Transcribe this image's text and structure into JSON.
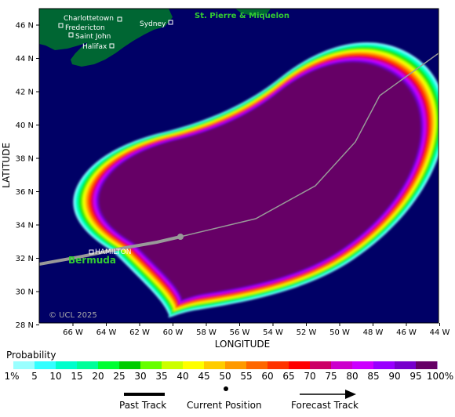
{
  "map": {
    "axis_title_x": "LONGITUDE",
    "axis_title_y": "LATITUDE",
    "lon_ticks": [
      "66 W",
      "64 W",
      "62 W",
      "60 W",
      "58 W",
      "56 W",
      "54 W",
      "52 W",
      "50 W",
      "48 W",
      "46 W",
      "44 W"
    ],
    "lat_ticks": [
      "46 N",
      "44 N",
      "42 N",
      "40 N",
      "38 N",
      "36 N",
      "34 N",
      "32 N",
      "30 N",
      "28 N"
    ],
    "cities": [
      "Charlottetown",
      "Fredericton",
      "Saint John",
      "Halifax",
      "Sydney",
      "HAMILTON"
    ],
    "regions": [
      "St. Pierre & Miquelon",
      "Bermuda"
    ],
    "copyright": "© UCL 2025",
    "colors": {
      "ocean": "#000066",
      "land": "#006633",
      "track": "#999999"
    }
  },
  "legend": {
    "title": "Probability",
    "labels": [
      "1%",
      "5",
      "10",
      "15",
      "20",
      "25",
      "30",
      "35",
      "40",
      "45",
      "50",
      "55",
      "60",
      "65",
      "70",
      "75",
      "80",
      "85",
      "90",
      "95",
      "100%"
    ],
    "colors": [
      "#99ffff",
      "#33ffff",
      "#00ffcc",
      "#00ff99",
      "#00ff33",
      "#00cc00",
      "#66ff00",
      "#ccff00",
      "#ffff00",
      "#ffcc00",
      "#ff9900",
      "#ff6600",
      "#ff3300",
      "#ff0000",
      "#cc0066",
      "#cc00cc",
      "#cc00ff",
      "#9900ff",
      "#7700cc",
      "#660099",
      "#660066"
    ],
    "past_track_label": "Past Track",
    "current_position_label": "Current Position",
    "forecast_track_label": "Forecast Track"
  }
}
